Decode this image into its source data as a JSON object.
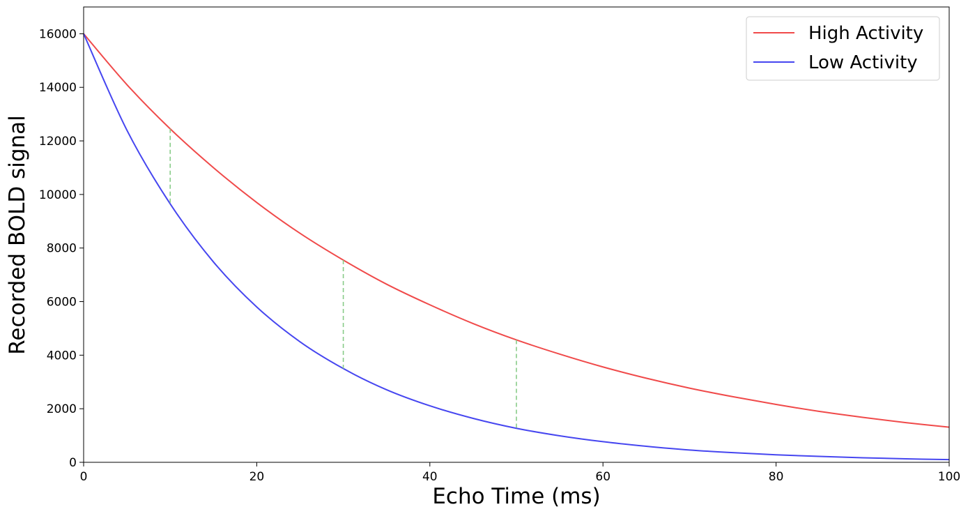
{
  "chart_data": {
    "type": "line",
    "title": "",
    "xlabel": "Echo Time (ms)",
    "ylabel": "Recorded BOLD signal",
    "xlim": [
      0,
      100
    ],
    "ylim": [
      0,
      17000
    ],
    "xticks": [
      0,
      20,
      40,
      60,
      80,
      100
    ],
    "yticks": [
      0,
      2000,
      4000,
      6000,
      8000,
      10000,
      12000,
      14000,
      16000
    ],
    "grid": false,
    "legend_position": "top-right",
    "series": [
      {
        "name": "High Activity",
        "color": "#f04a4a",
        "x": [
          0,
          5,
          10,
          15,
          20,
          25,
          30,
          35,
          40,
          45,
          50,
          55,
          60,
          65,
          70,
          75,
          80,
          85,
          90,
          95,
          100
        ],
        "values": [
          16000,
          14100,
          12450,
          11000,
          9700,
          8550,
          7550,
          6650,
          5880,
          5180,
          4570,
          4040,
          3560,
          3140,
          2770,
          2450,
          2160,
          1900,
          1680,
          1480,
          1310
        ]
      },
      {
        "name": "Low Activity",
        "color": "#4646f0",
        "x": [
          0,
          5,
          10,
          15,
          20,
          25,
          30,
          35,
          40,
          45,
          50,
          55,
          60,
          65,
          70,
          75,
          80,
          85,
          90,
          95,
          100
        ],
        "values": [
          16000,
          12400,
          9650,
          7480,
          5800,
          4500,
          3500,
          2710,
          2110,
          1640,
          1270,
          990,
          770,
          600,
          460,
          360,
          280,
          220,
          170,
          130,
          100
        ]
      }
    ],
    "annotations": [
      {
        "type": "dashed-vertical",
        "color": "#88cc88",
        "x": 10,
        "y_from": 9650,
        "y_to": 12450
      },
      {
        "type": "dashed-vertical",
        "color": "#88cc88",
        "x": 30,
        "y_from": 3500,
        "y_to": 7550
      },
      {
        "type": "dashed-vertical",
        "color": "#88cc88",
        "x": 50,
        "y_from": 1270,
        "y_to": 4570
      }
    ]
  }
}
